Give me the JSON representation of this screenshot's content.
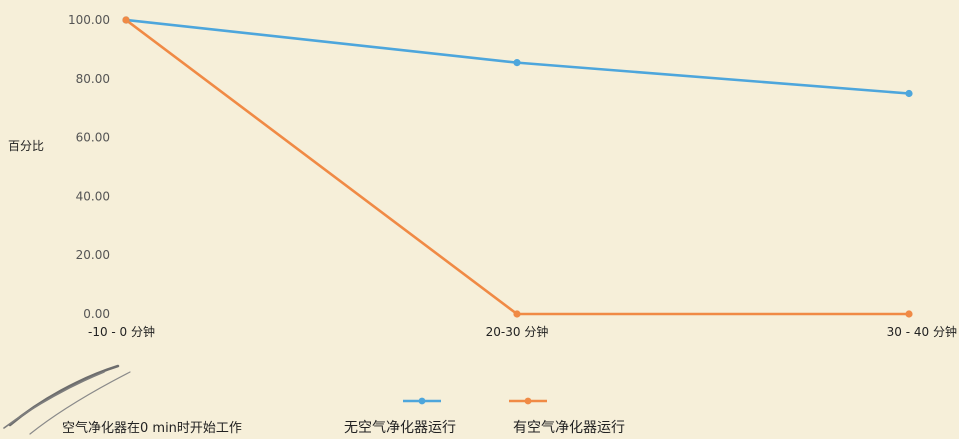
{
  "chart_data": {
    "type": "line",
    "categories": [
      "-10 - 0 分钟",
      "20-30 分钟",
      "30 - 40 分钟"
    ],
    "series": [
      {
        "name": "无空气净化器运行",
        "color": "#4da6dc",
        "values": [
          100.0,
          85.5,
          75.0
        ]
      },
      {
        "name": "有空气净化器运行",
        "color": "#f08a45",
        "values": [
          100.0,
          0.0,
          0.0
        ]
      }
    ],
    "yticks": [
      "0.00",
      "20.00",
      "40.00",
      "60.00",
      "80.00",
      "100.00"
    ],
    "ylim": [
      0,
      100
    ],
    "ylabel": "百分比",
    "xlabel": "",
    "title": "",
    "legend_position": "bottom",
    "grid": false
  },
  "annotation": {
    "text": "空气净化器在0 min时开始工作"
  }
}
